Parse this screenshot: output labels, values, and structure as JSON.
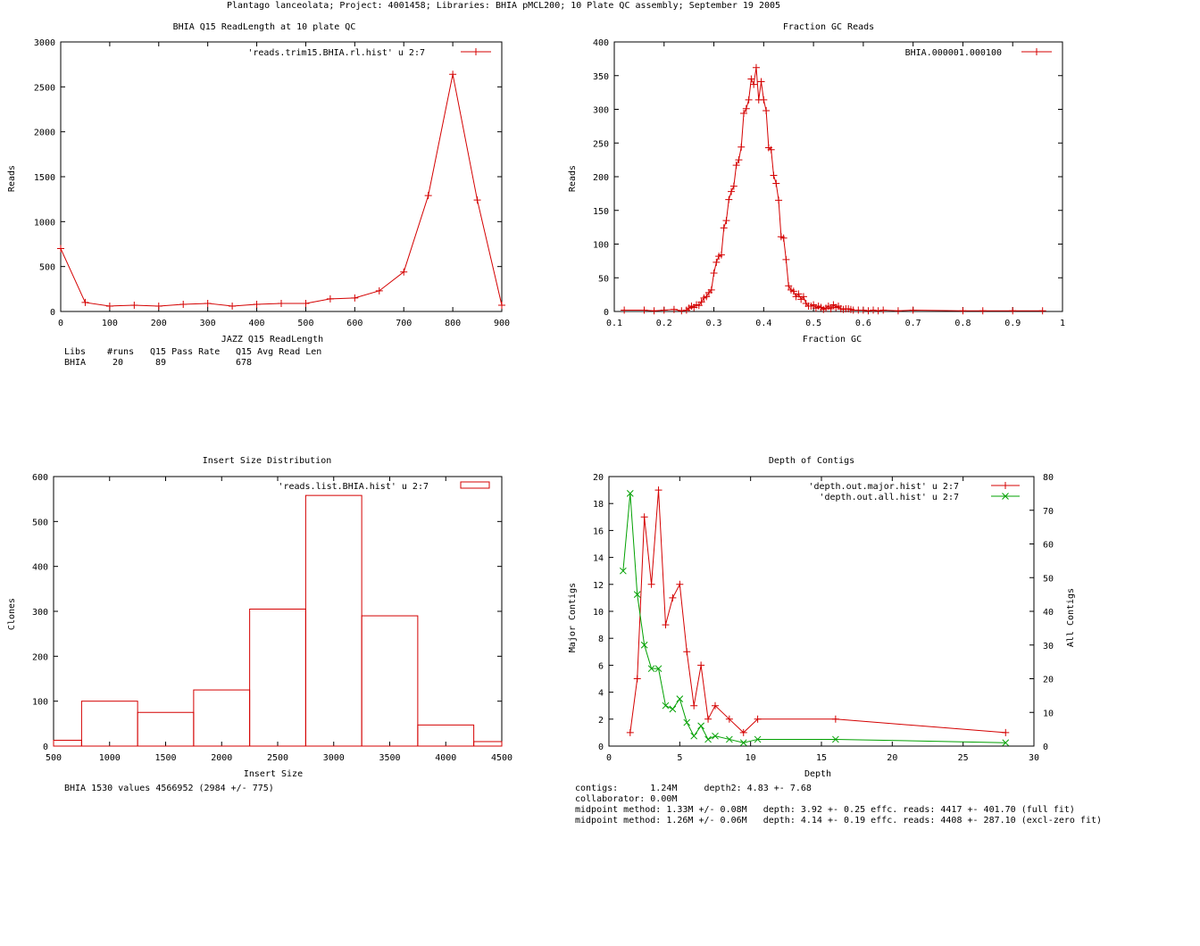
{
  "page_title": "Plantago lanceolata; Project: 4001458; Libraries: BHIA pMCL200; 10 Plate QC assembly; September 19 2005",
  "colors": {
    "red": "#d40000",
    "green": "#00a000",
    "axis": "#000000"
  },
  "chart_data": [
    {
      "id": "readlength",
      "type": "line",
      "title": "BHIA Q15 ReadLength at 10 plate QC",
      "xlabel": "JAZZ Q15 ReadLength",
      "ylabel": "Reads",
      "xlim": [
        0,
        900
      ],
      "ylim": [
        0,
        3000
      ],
      "xticks": [
        0,
        100,
        200,
        300,
        400,
        500,
        600,
        700,
        800,
        900
      ],
      "yticks": [
        0,
        500,
        1000,
        1500,
        2000,
        2500,
        3000
      ],
      "legend_position": "top-right",
      "grid": false,
      "series": [
        {
          "name": "'reads.trim15.BHIA.rl.hist' u 2:7",
          "color": "#d40000",
          "marker": "plus",
          "x": [
            0,
            50,
            100,
            150,
            200,
            250,
            300,
            350,
            400,
            450,
            500,
            550,
            600,
            650,
            700,
            750,
            800,
            850,
            900
          ],
          "y": [
            700,
            100,
            60,
            70,
            60,
            80,
            90,
            60,
            80,
            90,
            90,
            140,
            150,
            230,
            440,
            1290,
            2640,
            1240,
            70
          ]
        }
      ],
      "stats_table": {
        "headers": [
          "Libs",
          "#runs",
          "Q15 Pass Rate",
          "Q15 Avg Read Len"
        ],
        "rows": [
          [
            "BHIA",
            "20",
            "89",
            "678"
          ]
        ]
      }
    },
    {
      "id": "gc",
      "type": "line",
      "title": "Fraction GC Reads",
      "xlabel": "Fraction GC",
      "ylabel": "Reads",
      "xlim": [
        0.1,
        1
      ],
      "ylim": [
        0,
        400
      ],
      "xticks": [
        0.1,
        0.2,
        0.3,
        0.4,
        0.5,
        0.6,
        0.7,
        0.8,
        0.9,
        1
      ],
      "xtick_labels": [
        "0.1",
        "0.2",
        "0.3",
        "0.4",
        "0.5",
        "0.6",
        "0.7",
        "0.8",
        "0.9",
        "1"
      ],
      "yticks": [
        0,
        50,
        100,
        150,
        200,
        250,
        300,
        350,
        400
      ],
      "legend_position": "top-right",
      "grid": false,
      "series": [
        {
          "name": "BHIA.000001.000100",
          "color": "#d40000",
          "marker": "plus",
          "x": [
            0.12,
            0.16,
            0.18,
            0.2,
            0.22,
            0.235,
            0.245,
            0.25,
            0.255,
            0.26,
            0.265,
            0.27,
            0.275,
            0.28,
            0.285,
            0.29,
            0.295,
            0.3,
            0.305,
            0.31,
            0.315,
            0.32,
            0.325,
            0.33,
            0.335,
            0.34,
            0.345,
            0.35,
            0.355,
            0.36,
            0.365,
            0.37,
            0.375,
            0.38,
            0.385,
            0.39,
            0.395,
            0.4,
            0.405,
            0.41,
            0.415,
            0.42,
            0.425,
            0.43,
            0.435,
            0.44,
            0.445,
            0.45,
            0.455,
            0.46,
            0.465,
            0.47,
            0.475,
            0.48,
            0.485,
            0.49,
            0.495,
            0.5,
            0.505,
            0.51,
            0.515,
            0.52,
            0.525,
            0.53,
            0.535,
            0.54,
            0.545,
            0.55,
            0.555,
            0.56,
            0.565,
            0.57,
            0.575,
            0.58,
            0.59,
            0.6,
            0.61,
            0.62,
            0.63,
            0.64,
            0.67,
            0.7,
            0.8,
            0.84,
            0.9,
            0.96
          ],
          "y": [
            2,
            2,
            1,
            2,
            3,
            1,
            2,
            5,
            8,
            6,
            10,
            9,
            14,
            20,
            22,
            28,
            32,
            57,
            73,
            82,
            84,
            124,
            135,
            166,
            178,
            186,
            217,
            225,
            244,
            294,
            301,
            314,
            345,
            337,
            362,
            314,
            341,
            314,
            298,
            243,
            240,
            202,
            190,
            165,
            111,
            109,
            77,
            38,
            32,
            30,
            22,
            26,
            18,
            22,
            12,
            8,
            8,
            10,
            5,
            8,
            6,
            3,
            5,
            8,
            4,
            10,
            6,
            8,
            4,
            3,
            4,
            4,
            3,
            2,
            2,
            2,
            1,
            2,
            1,
            2,
            1,
            2,
            1,
            1,
            1,
            1
          ]
        }
      ]
    },
    {
      "id": "insert",
      "type": "bar",
      "title": "Insert Size Distribution",
      "xlabel": "Insert Size",
      "ylabel": "Clones",
      "xlim": [
        500,
        4500
      ],
      "ylim": [
        0,
        600
      ],
      "xticks": [
        500,
        1000,
        1500,
        2000,
        2500,
        3000,
        3500,
        4000,
        4500
      ],
      "yticks": [
        0,
        100,
        200,
        300,
        400,
        500,
        600
      ],
      "legend_position": "top-right",
      "grid": false,
      "bar_width": 500,
      "series": [
        {
          "name": "'reads.list.BHIA.hist' u 2:7",
          "color": "#d40000",
          "x": [
            500,
            1000,
            1500,
            2000,
            2500,
            3000,
            3500,
            4000,
            4500
          ],
          "y": [
            13,
            100,
            75,
            125,
            305,
            558,
            290,
            47,
            10
          ]
        }
      ],
      "summary": "BHIA 1530 values 4566952 (2984 +/- 775)"
    },
    {
      "id": "depth",
      "type": "line",
      "title": "Depth of Contigs",
      "xlabel": "Depth",
      "ylabel": "Major Contigs",
      "y2label": "All Contigs",
      "xlim": [
        0,
        30
      ],
      "ylim": [
        0,
        20
      ],
      "y2lim": [
        0,
        80
      ],
      "xticks": [
        0,
        5,
        10,
        15,
        20,
        25,
        30
      ],
      "yticks": [
        0,
        2,
        4,
        6,
        8,
        10,
        12,
        14,
        16,
        18,
        20
      ],
      "y2ticks": [
        0,
        10,
        20,
        30,
        40,
        50,
        60,
        70,
        80
      ],
      "legend_position": "top-right",
      "grid": false,
      "series": [
        {
          "name": "'depth.out.major.hist' u 2:7",
          "color": "#d40000",
          "marker": "plus",
          "axis": "y",
          "x": [
            1.5,
            2,
            2.5,
            3,
            3.5,
            4,
            4.5,
            5,
            5.5,
            6,
            6.5,
            7,
            7.5,
            8.5,
            9.5,
            10.5,
            16,
            28
          ],
          "y": [
            1,
            5,
            17,
            12,
            19,
            9,
            11,
            12,
            7,
            3,
            6,
            2,
            3,
            2,
            1,
            2,
            2,
            1
          ]
        },
        {
          "name": "'depth.out.all.hist' u 2:7",
          "color": "#00a000",
          "marker": "x",
          "axis": "y2",
          "x": [
            1,
            1.5,
            2,
            2.5,
            3,
            3.5,
            4,
            4.5,
            5,
            5.5,
            6,
            6.5,
            7,
            7.5,
            8.5,
            9.5,
            10.5,
            16,
            28
          ],
          "y": [
            52,
            75,
            45,
            30,
            23,
            23,
            12,
            11,
            14,
            7,
            3,
            6,
            2,
            3,
            2,
            1,
            2,
            2,
            1
          ]
        }
      ],
      "stats_lines": [
        "contigs:      1.24M     depth2: 4.83 +- 7.68",
        "collaborator: 0.00M",
        "midpoint method: 1.33M +/- 0.08M   depth: 3.92 +- 0.25 effc. reads: 4417 +- 401.70 (full fit)",
        "midpoint method: 1.26M +/- 0.06M   depth: 4.14 +- 0.19 effc. reads: 4408 +- 287.10 (excl-zero fit)"
      ]
    }
  ]
}
